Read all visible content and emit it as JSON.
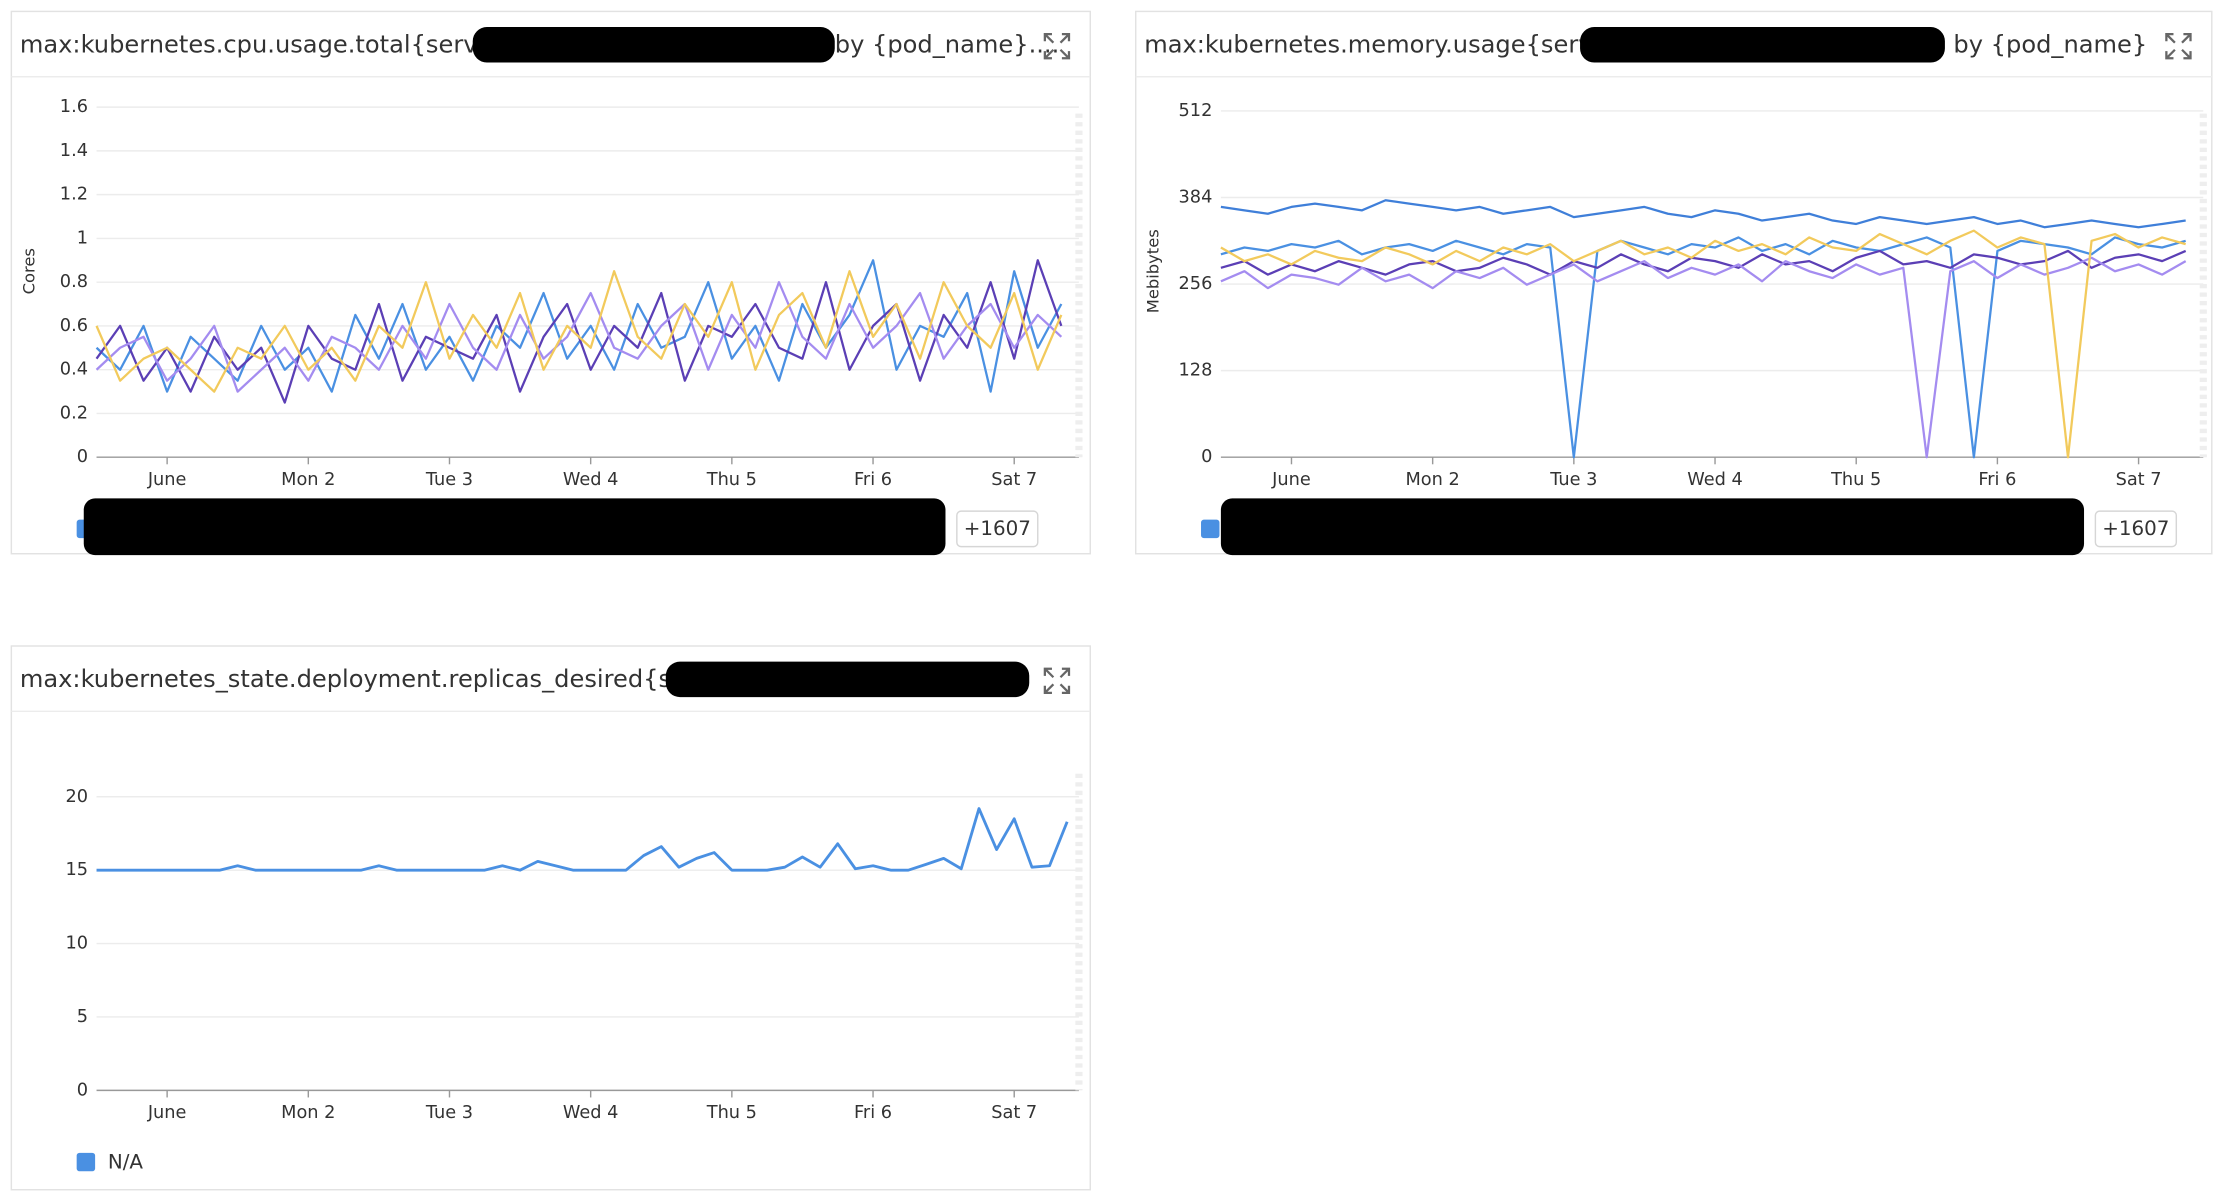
{
  "chart_data": [
    {
      "type": "line",
      "title": "max:kubernetes.cpu.usage.total{service:",
      "title_suffix": "by {pod_name}....",
      "ylabel": "Cores",
      "legend_more": "+1607",
      "xlim": [
        -12,
        155
      ],
      "xticks": [
        {
          "value": 0,
          "label": "June"
        },
        {
          "value": 24,
          "label": "Mon 2"
        },
        {
          "value": 48,
          "label": "Tue 3"
        },
        {
          "value": 72,
          "label": "Wed 4"
        },
        {
          "value": 96,
          "label": "Thu 5"
        },
        {
          "value": 120,
          "label": "Fri 6"
        },
        {
          "value": 144,
          "label": "Sat 7"
        }
      ],
      "ylim": [
        0,
        1.7
      ],
      "yticks": [
        0,
        0.2,
        0.4,
        0.6,
        0.8,
        1,
        1.2,
        1.4,
        1.6
      ],
      "grid": true,
      "x": [
        -12,
        -8,
        -4,
        0,
        4,
        8,
        12,
        16,
        20,
        24,
        28,
        32,
        36,
        40,
        44,
        48,
        52,
        56,
        60,
        64,
        68,
        72,
        76,
        80,
        84,
        88,
        92,
        96,
        100,
        104,
        108,
        112,
        116,
        120,
        124,
        128,
        132,
        136,
        140,
        144,
        148,
        152
      ],
      "series": [
        {
          "color": "#4a90e2",
          "values": [
            0.5,
            0.4,
            0.6,
            0.3,
            0.55,
            0.45,
            0.35,
            0.6,
            0.4,
            0.5,
            0.3,
            0.65,
            0.45,
            0.7,
            0.4,
            0.55,
            0.35,
            0.6,
            0.5,
            0.75,
            0.45,
            0.6,
            0.4,
            0.7,
            0.5,
            0.55,
            0.8,
            0.45,
            0.6,
            0.35,
            0.7,
            0.5,
            0.65,
            0.9,
            0.4,
            0.6,
            0.55,
            0.75,
            0.3,
            0.85,
            0.5,
            0.7
          ]
        },
        {
          "color": "#5b3fb5",
          "values": [
            0.45,
            0.6,
            0.35,
            0.5,
            0.3,
            0.55,
            0.4,
            0.5,
            0.25,
            0.6,
            0.45,
            0.4,
            0.7,
            0.35,
            0.55,
            0.5,
            0.45,
            0.65,
            0.3,
            0.55,
            0.7,
            0.4,
            0.6,
            0.5,
            0.75,
            0.35,
            0.6,
            0.55,
            0.7,
            0.5,
            0.45,
            0.8,
            0.4,
            0.6,
            0.7,
            0.35,
            0.65,
            0.5,
            0.8,
            0.45,
            0.9,
            0.6
          ]
        },
        {
          "color": "#a48cf0",
          "values": [
            0.4,
            0.5,
            0.55,
            0.35,
            0.45,
            0.6,
            0.3,
            0.4,
            0.5,
            0.35,
            0.55,
            0.5,
            0.4,
            0.6,
            0.45,
            0.7,
            0.5,
            0.4,
            0.65,
            0.45,
            0.55,
            0.75,
            0.5,
            0.45,
            0.6,
            0.7,
            0.4,
            0.65,
            0.5,
            0.8,
            0.55,
            0.45,
            0.7,
            0.5,
            0.6,
            0.75,
            0.45,
            0.6,
            0.7,
            0.5,
            0.65,
            0.55
          ]
        },
        {
          "color": "#f2ca5c",
          "values": [
            0.6,
            0.35,
            0.45,
            0.5,
            0.4,
            0.3,
            0.5,
            0.45,
            0.6,
            0.4,
            0.5,
            0.35,
            0.6,
            0.5,
            0.8,
            0.45,
            0.65,
            0.5,
            0.75,
            0.4,
            0.6,
            0.5,
            0.85,
            0.55,
            0.45,
            0.7,
            0.55,
            0.8,
            0.4,
            0.65,
            0.75,
            0.5,
            0.85,
            0.55,
            0.7,
            0.45,
            0.8,
            0.6,
            0.5,
            0.75,
            0.4,
            0.65
          ]
        }
      ]
    },
    {
      "type": "line",
      "title": "max:kubernetes.memory.usage{service",
      "title_suffix": "by {pod_name}",
      "ylabel": "Mebibytes",
      "legend_more": "+1607",
      "xlim": [
        -12,
        155
      ],
      "xticks": [
        {
          "value": 0,
          "label": "June"
        },
        {
          "value": 24,
          "label": "Mon 2"
        },
        {
          "value": 48,
          "label": "Tue 3"
        },
        {
          "value": 72,
          "label": "Wed 4"
        },
        {
          "value": 96,
          "label": "Thu 5"
        },
        {
          "value": 120,
          "label": "Fri 6"
        },
        {
          "value": 144,
          "label": "Sat 7"
        }
      ],
      "ylim": [
        0,
        550
      ],
      "yticks": [
        0,
        128,
        256,
        384,
        512
      ],
      "grid": true,
      "x": [
        -12,
        -8,
        -4,
        0,
        4,
        8,
        12,
        16,
        20,
        24,
        28,
        32,
        36,
        40,
        44,
        48,
        52,
        56,
        60,
        64,
        68,
        72,
        76,
        80,
        84,
        88,
        92,
        96,
        100,
        104,
        108,
        112,
        116,
        120,
        124,
        128,
        132,
        136,
        140,
        144,
        148,
        152
      ],
      "series": [
        {
          "color": "#4a90e2",
          "values": [
            300,
            310,
            305,
            315,
            310,
            320,
            300,
            310,
            315,
            305,
            320,
            310,
            300,
            315,
            310,
            0,
            305,
            320,
            310,
            300,
            315,
            310,
            325,
            305,
            315,
            300,
            320,
            310,
            305,
            315,
            325,
            310,
            0,
            305,
            320,
            315,
            310,
            300,
            325,
            315,
            310,
            320
          ]
        },
        {
          "color": "#5b3fb5",
          "values": [
            280,
            290,
            270,
            285,
            275,
            290,
            280,
            270,
            285,
            290,
            275,
            280,
            295,
            285,
            270,
            290,
            280,
            300,
            285,
            275,
            295,
            290,
            280,
            300,
            285,
            290,
            275,
            295,
            305,
            285,
            290,
            280,
            300,
            295,
            285,
            290,
            305,
            280,
            295,
            300,
            290,
            305
          ]
        },
        {
          "color": "#a48cf0",
          "values": [
            260,
            275,
            250,
            270,
            265,
            255,
            280,
            260,
            270,
            250,
            275,
            265,
            280,
            255,
            270,
            285,
            260,
            275,
            290,
            265,
            280,
            270,
            285,
            260,
            290,
            275,
            265,
            285,
            270,
            280,
            0,
            275,
            290,
            265,
            285,
            270,
            280,
            295,
            275,
            285,
            270,
            290
          ]
        },
        {
          "color": "#f2ca5c",
          "values": [
            310,
            290,
            300,
            285,
            305,
            295,
            290,
            310,
            300,
            285,
            305,
            290,
            310,
            300,
            315,
            290,
            305,
            320,
            300,
            310,
            295,
            320,
            305,
            315,
            300,
            325,
            310,
            305,
            330,
            315,
            300,
            320,
            335,
            310,
            325,
            315,
            0,
            320,
            330,
            310,
            325,
            315
          ]
        },
        {
          "color": "#3f7fd9",
          "values": [
            370,
            365,
            360,
            370,
            375,
            370,
            365,
            380,
            375,
            370,
            365,
            370,
            360,
            365,
            370,
            355,
            360,
            365,
            370,
            360,
            355,
            365,
            360,
            350,
            355,
            360,
            350,
            345,
            355,
            350,
            345,
            350,
            355,
            345,
            350,
            340,
            345,
            350,
            345,
            340,
            345,
            350
          ]
        }
      ]
    },
    {
      "type": "line",
      "title": "max:kubernetes_state.deployment.replicas_desired{servic",
      "xlim": [
        -12,
        155
      ],
      "xticks": [
        {
          "value": 0,
          "label": "June"
        },
        {
          "value": 24,
          "label": "Mon 2"
        },
        {
          "value": 48,
          "label": "Tue 3"
        },
        {
          "value": 72,
          "label": "Wed 4"
        },
        {
          "value": 96,
          "label": "Thu 5"
        },
        {
          "value": 120,
          "label": "Fri 6"
        },
        {
          "value": 144,
          "label": "Sat 7"
        }
      ],
      "ylim": [
        0,
        23.5
      ],
      "yticks": [
        0,
        5,
        10,
        15,
        20
      ],
      "grid": true,
      "x": [
        -12,
        -9,
        -6,
        -3,
        0,
        3,
        6,
        9,
        12,
        15,
        18,
        21,
        24,
        27,
        30,
        33,
        36,
        39,
        42,
        45,
        48,
        51,
        54,
        57,
        60,
        63,
        66,
        69,
        72,
        75,
        78,
        81,
        84,
        87,
        90,
        93,
        96,
        99,
        102,
        105,
        108,
        111,
        114,
        117,
        120,
        123,
        126,
        129,
        132,
        135,
        138,
        141,
        144,
        147,
        150,
        153
      ],
      "series": [
        {
          "name": "N/A",
          "color": "#4a90e2",
          "values": [
            15,
            15,
            15,
            15,
            15,
            15,
            15,
            15,
            15.3,
            15,
            15,
            15,
            15,
            15,
            15,
            15,
            15.3,
            15,
            15,
            15,
            15,
            15,
            15,
            15.3,
            15,
            15.6,
            15.3,
            15,
            15,
            15,
            15,
            16,
            16.6,
            15.2,
            15.8,
            16.2,
            15,
            15,
            15,
            15.2,
            15.9,
            15.2,
            16.8,
            15.1,
            15.3,
            15,
            15,
            15.4,
            15.8,
            15.1,
            19.2,
            16.4,
            18.5,
            15.2,
            15.3,
            18.3
          ]
        }
      ]
    }
  ]
}
